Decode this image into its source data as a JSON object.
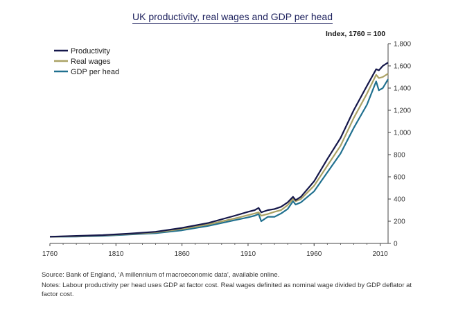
{
  "chart_data": {
    "type": "line",
    "title": "UK productivity, real wages and GDP per head",
    "unit_label": "Index, 1760 = 100",
    "xlabel": "",
    "ylabel": "",
    "xlim": [
      1760,
      2016
    ],
    "ylim": [
      0,
      1800
    ],
    "x_ticks": [
      "1760",
      "1810",
      "1860",
      "1910",
      "1960",
      "2010"
    ],
    "y_ticks": [
      "0",
      "200",
      "400",
      "600",
      "800",
      "1,000",
      "1,200",
      "1,400",
      "1,600",
      "1,800"
    ],
    "legend_position": "top-left",
    "x": [
      1760,
      1780,
      1800,
      1820,
      1840,
      1860,
      1880,
      1900,
      1910,
      1915,
      1918,
      1920,
      1925,
      1930,
      1935,
      1940,
      1944,
      1946,
      1950,
      1960,
      1970,
      1980,
      1990,
      2000,
      2007,
      2009,
      2012,
      2016
    ],
    "series": [
      {
        "name": "Productivity",
        "color": "#14174a",
        "values": [
          60,
          68,
          75,
          88,
          105,
          140,
          185,
          250,
          285,
          300,
          320,
          280,
          300,
          310,
          330,
          370,
          420,
          390,
          420,
          560,
          760,
          950,
          1200,
          1420,
          1570,
          1560,
          1600,
          1630
        ]
      },
      {
        "name": "Real wages",
        "color": "#aaa164",
        "values": [
          60,
          65,
          73,
          85,
          100,
          130,
          172,
          225,
          255,
          270,
          280,
          250,
          265,
          285,
          300,
          345,
          400,
          380,
          400,
          520,
          700,
          880,
          1130,
          1350,
          1520,
          1490,
          1500,
          1530
        ]
      },
      {
        "name": "GDP per head",
        "color": "#20708f",
        "values": [
          60,
          62,
          68,
          80,
          92,
          118,
          158,
          210,
          235,
          250,
          265,
          200,
          240,
          240,
          270,
          310,
          380,
          350,
          370,
          470,
          640,
          810,
          1040,
          1250,
          1460,
          1380,
          1400,
          1480
        ]
      }
    ]
  },
  "footnotes": {
    "source": "Source: Bank of England, ‘A millennium of macroeconomic data’, available online.",
    "notes": "Notes: Labour productivity per head uses GDP at factor cost. Real wages definited as nominal wage divided by GDP deflator at factor cost."
  }
}
